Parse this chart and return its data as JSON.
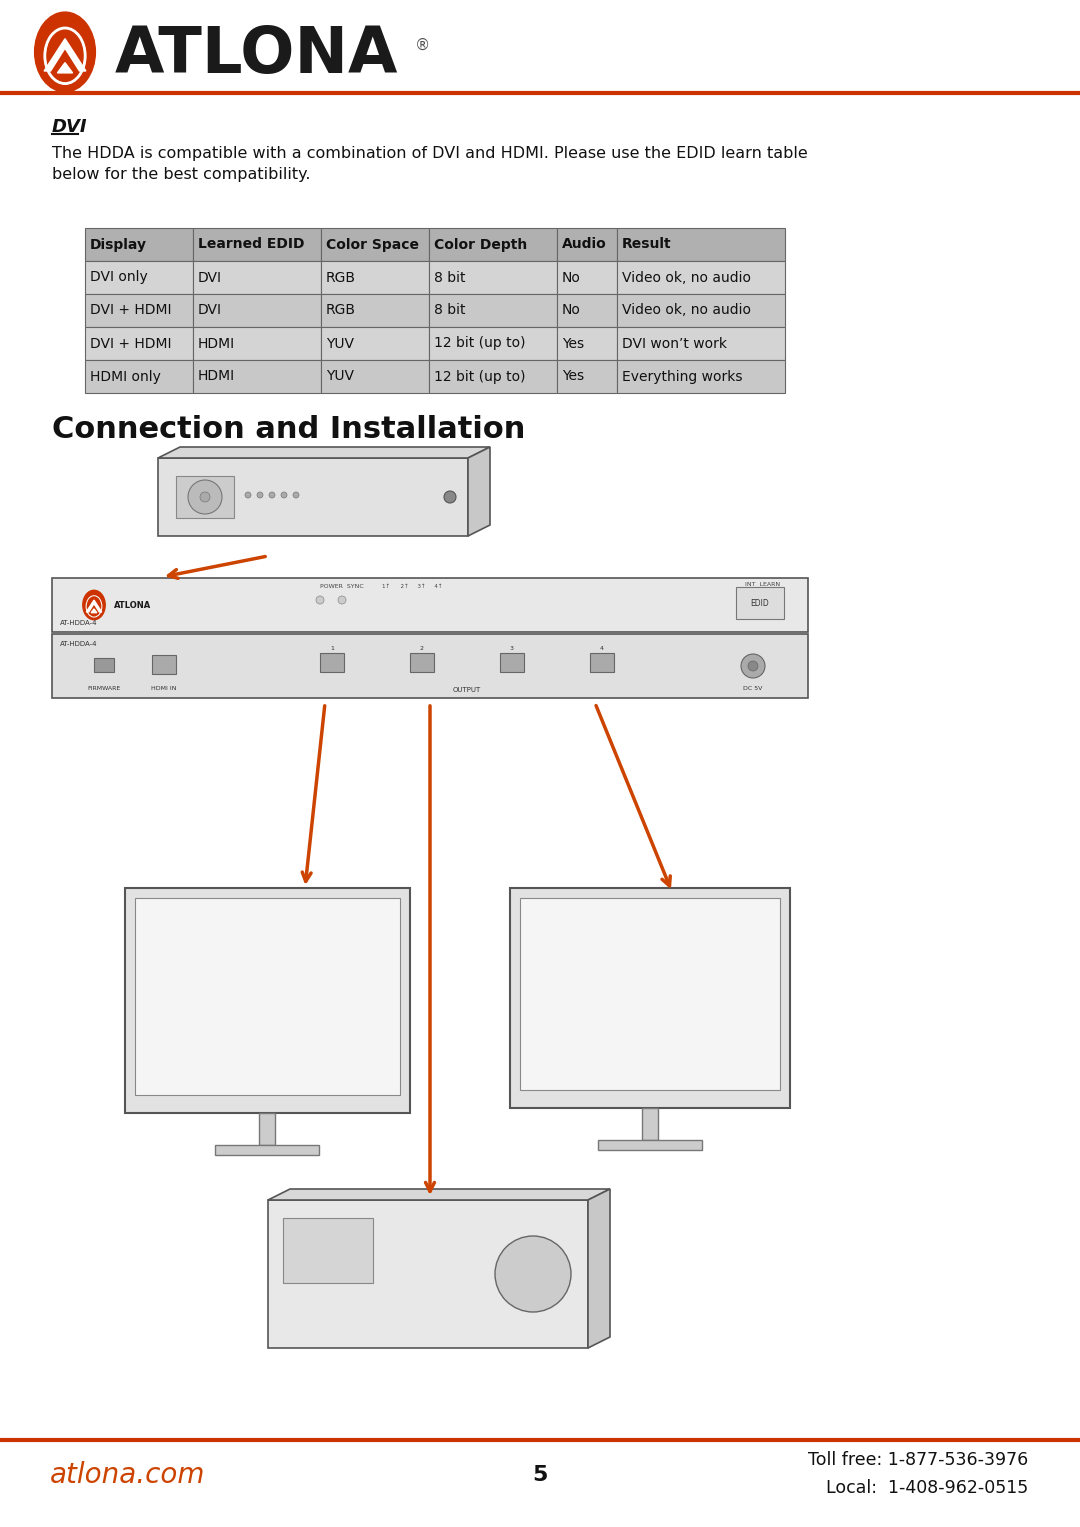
{
  "bg_color": "#ffffff",
  "header_line_color": "#cc3300",
  "logo_text": "ATLONA",
  "logo_text_color": "#1a1a1a",
  "dvi_title": "DVI",
  "dvi_body": "The HDDA is compatible with a combination of DVI and HDMI. Please use the EDID learn table\nbelow for the best compatibility.",
  "table_headers": [
    "Display",
    "Learned EDID",
    "Color Space",
    "Color Depth",
    "Audio",
    "Result"
  ],
  "table_rows": [
    [
      "DVI only",
      "DVI",
      "RGB",
      "8 bit",
      "No",
      "Video ok, no audio"
    ],
    [
      "DVI + HDMI",
      "DVI",
      "RGB",
      "8 bit",
      "No",
      "Video ok, no audio"
    ],
    [
      "DVI + HDMI",
      "HDMI",
      "YUV",
      "12 bit (up to)",
      "Yes",
      "DVI won’t work"
    ],
    [
      "HDMI only",
      "HDMI",
      "YUV",
      "12 bit (up to)",
      "Yes",
      "Everything works"
    ]
  ],
  "table_header_bg": "#b0b0b0",
  "table_row_bg_odd": "#d4d4d4",
  "table_row_bg_even": "#c8c8c8",
  "section_title": "Connection and Installation",
  "footer_left": "atlona.com",
  "footer_center": "5",
  "footer_right_line1": "Toll free: 1-877-536-3976",
  "footer_right_line2": "Local:  1-408-962-0515",
  "footer_line_color": "#cc3300",
  "arrow_color": "#cc4400"
}
